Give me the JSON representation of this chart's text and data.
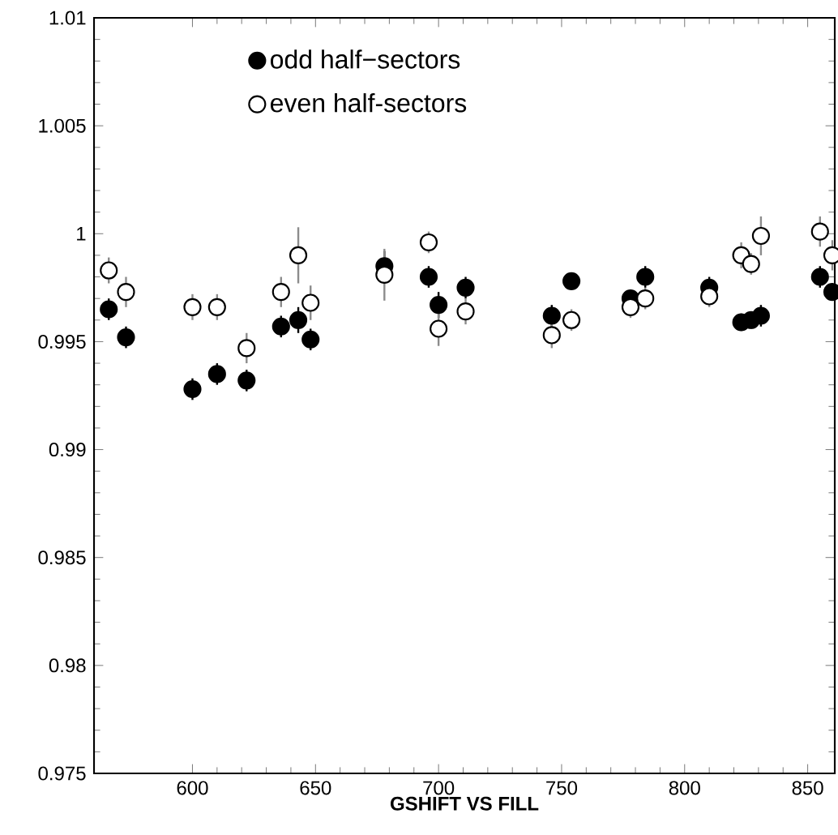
{
  "chart_data": {
    "type": "scatter",
    "xlabel": "GSHIFT VS FILL",
    "xlim": [
      560,
      861
    ],
    "ylim": [
      0.975,
      1.01
    ],
    "xticks": [
      600,
      650,
      700,
      750,
      800,
      850
    ],
    "yticks": [
      0.975,
      0.98,
      0.985,
      0.99,
      0.995,
      1,
      1.005,
      1.01
    ],
    "legend": "top left",
    "marker": "circle",
    "grid": false,
    "series": [
      {
        "name": "odd half−sectors",
        "color": "#000000",
        "x": [
          566,
          573,
          600,
          610,
          622,
          636,
          643,
          648,
          678,
          696,
          700,
          711,
          746,
          754,
          778,
          784,
          810,
          823,
          827,
          831,
          855,
          860
        ],
        "values": [
          0.9965,
          0.9952,
          0.9928,
          0.9935,
          0.9932,
          0.9957,
          0.996,
          0.9951,
          0.9985,
          0.998,
          0.9967,
          0.9975,
          0.9962,
          0.9978,
          0.997,
          0.998,
          0.9975,
          0.9959,
          0.996,
          0.9962,
          0.998,
          0.9973
        ],
        "errors": [
          0.0005,
          0.0005,
          0.0005,
          0.0005,
          0.0005,
          0.0005,
          0.0006,
          0.0005,
          0.0007,
          0.0005,
          0.0006,
          0.0005,
          0.0005,
          0.0003,
          0.0004,
          0.0005,
          0.0005,
          0.0004,
          0.0004,
          0.0005,
          0.0005,
          0.0004
        ]
      },
      {
        "name": "even half-sectors",
        "color": "#ffffff",
        "x": [
          566,
          573,
          600,
          610,
          622,
          636,
          643,
          648,
          678,
          696,
          700,
          711,
          746,
          754,
          778,
          784,
          810,
          823,
          827,
          831,
          855,
          860
        ],
        "values": [
          0.9983,
          0.9973,
          0.9966,
          0.9966,
          0.9947,
          0.9973,
          0.999,
          0.9968,
          0.9981,
          0.9996,
          0.9956,
          0.9964,
          0.9953,
          0.996,
          0.9966,
          0.997,
          0.9971,
          0.999,
          0.9986,
          0.9999,
          1.0001,
          0.999
        ],
        "errors": [
          0.0006,
          0.0007,
          0.0006,
          0.0006,
          0.0007,
          0.0007,
          0.0013,
          0.0008,
          0.0012,
          0.0005,
          0.0008,
          0.0006,
          0.0006,
          0.0005,
          0.0005,
          0.0005,
          0.0005,
          0.0006,
          0.0005,
          0.0009,
          0.0007,
          0.0007
        ]
      }
    ]
  }
}
